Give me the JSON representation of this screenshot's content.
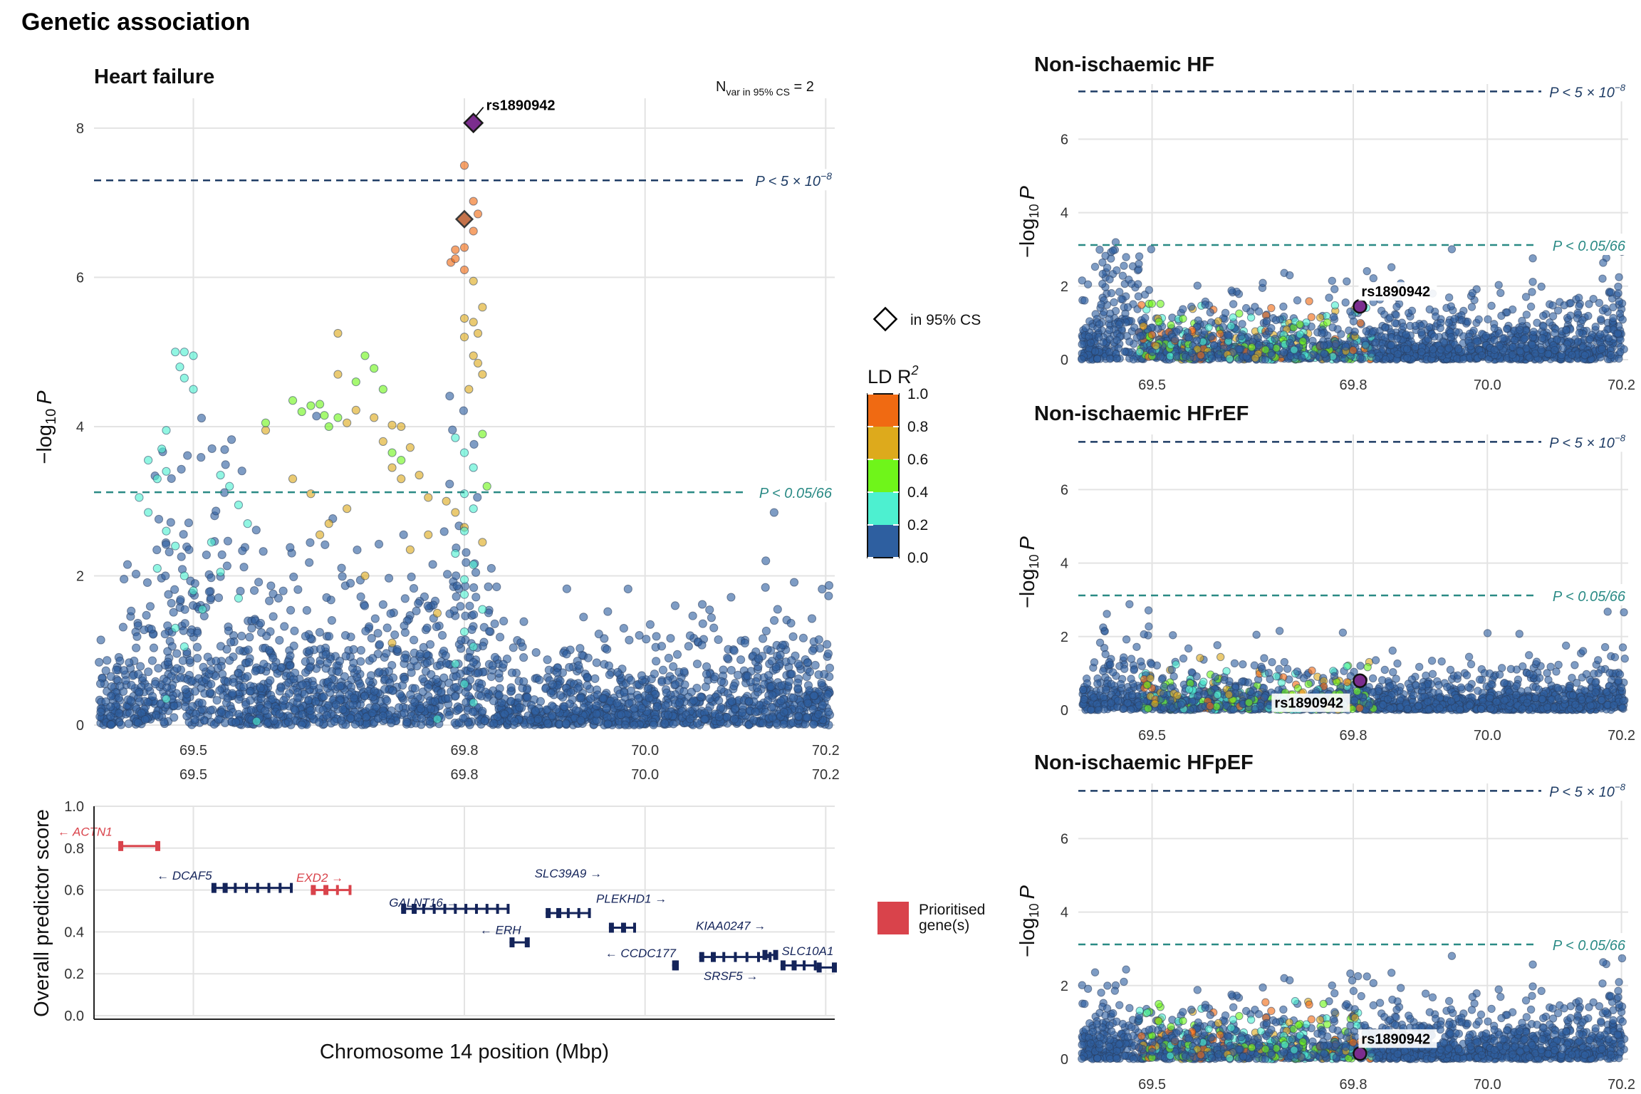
{
  "figure": {
    "title": "Genetic association",
    "main_panel_title": "Heart failure",
    "nvar_text": "N",
    "nvar_sub": "var in 95% CS",
    "nvar_value": " = 2",
    "lead_snp": "rs1890942",
    "xlabel": "Chromosome 14 position (Mbp)",
    "ylabel_logp": "−log",
    "ylabel_logp_sub": "10",
    "ylabel_logp_p": "P",
    "ylabel_gene": "Overall predictor score",
    "threshold_gw_label": "P < 5 × 10",
    "threshold_gw_exp": "−8",
    "threshold_bonf_label": "P < 0.05/66",
    "legend": {
      "cs_label": "in 95% CS",
      "ld_title": "LD R",
      "ld_title_exp": "2",
      "ld_ticks": [
        "1.0",
        "0.8",
        "0.6",
        "0.4",
        "0.2",
        "0.0"
      ],
      "prioritised_line1": "Prioritised",
      "prioritised_line2": "gene(s)"
    },
    "colors": {
      "ld_0": "#2E5FA0",
      "ld_2": "#4DF0D0",
      "ld_4": "#6FF51A",
      "ld_6": "#DDAA1C",
      "ld_8": "#F06A12",
      "lead": "#7B2D8E",
      "gw_line": "#1F3D66",
      "bonf_line": "#2A8A85",
      "prioritised": "#D9434B",
      "gene": "#14245A"
    }
  },
  "chart_data": [
    {
      "type": "scatter",
      "title": "Heart failure",
      "xlabel": "",
      "ylabel": "−log10 P",
      "xlim": [
        69.39,
        70.21
      ],
      "ylim": [
        0,
        8.4
      ],
      "x_ticks": [
        "69.5",
        "69.8",
        "70.0",
        "70.2"
      ],
      "y_ticks": [
        "0",
        "2",
        "4",
        "6",
        "8"
      ],
      "lead_snp": {
        "name": "rs1890942",
        "x": 69.81,
        "y": 8.07
      },
      "credible_set": [
        {
          "x": 69.81,
          "y": 8.07
        },
        {
          "x": 69.8,
          "y": 6.78
        }
      ],
      "thresholds": {
        "genome_wide": 7.3,
        "bonferroni": 3.12
      },
      "highlight_points": [
        [
          69.8,
          7.5,
          4
        ],
        [
          69.81,
          7.02,
          4
        ],
        [
          69.815,
          6.85,
          4
        ],
        [
          69.81,
          6.62,
          4
        ],
        [
          69.79,
          6.37,
          4
        ],
        [
          69.8,
          6.4,
          4
        ],
        [
          69.785,
          6.2,
          4
        ],
        [
          69.8,
          6.1,
          4
        ],
        [
          69.79,
          6.25,
          4
        ],
        [
          69.81,
          5.95,
          3
        ],
        [
          69.82,
          5.6,
          3
        ],
        [
          69.815,
          5.25,
          3
        ],
        [
          69.8,
          5.45,
          3
        ],
        [
          69.81,
          4.95,
          3
        ],
        [
          69.82,
          4.7,
          3
        ],
        [
          69.805,
          4.5,
          3
        ],
        [
          69.815,
          4.85,
          3
        ],
        [
          69.8,
          5.2,
          3
        ],
        [
          69.81,
          5.4,
          3
        ],
        [
          69.66,
          5.25,
          3
        ],
        [
          69.66,
          4.7,
          3
        ],
        [
          69.68,
          4.22,
          3
        ],
        [
          69.67,
          4.05,
          3
        ],
        [
          69.7,
          4.12,
          3
        ],
        [
          69.72,
          4.02,
          3
        ],
        [
          69.73,
          4.0,
          3
        ],
        [
          69.71,
          3.8,
          3
        ],
        [
          69.74,
          3.72,
          3
        ],
        [
          69.72,
          3.45,
          3
        ],
        [
          69.75,
          3.35,
          3
        ],
        [
          69.76,
          3.05,
          3
        ],
        [
          69.73,
          3.3,
          3
        ],
        [
          69.78,
          3.0,
          3
        ],
        [
          69.58,
          3.95,
          3
        ],
        [
          69.61,
          3.3,
          3
        ],
        [
          69.63,
          3.1,
          3
        ],
        [
          69.65,
          2.7,
          3
        ],
        [
          69.67,
          2.9,
          3
        ],
        [
          69.74,
          2.35,
          3
        ],
        [
          69.76,
          2.55,
          3
        ],
        [
          69.69,
          2.0,
          3
        ],
        [
          69.64,
          2.55,
          3
        ],
        [
          69.77,
          1.5,
          3
        ],
        [
          69.72,
          1.1,
          3
        ],
        [
          69.79,
          2.85,
          3
        ],
        [
          69.8,
          2.65,
          3
        ],
        [
          69.82,
          2.45,
          3
        ],
        [
          69.61,
          4.35,
          2
        ],
        [
          69.63,
          4.28,
          2
        ],
        [
          69.62,
          4.2,
          2
        ],
        [
          69.645,
          4.15,
          2
        ],
        [
          69.66,
          4.12,
          2
        ],
        [
          69.64,
          4.3,
          2
        ],
        [
          69.65,
          4.0,
          2
        ],
        [
          69.69,
          4.95,
          2
        ],
        [
          69.7,
          4.78,
          2
        ],
        [
          69.71,
          4.5,
          2
        ],
        [
          69.68,
          4.6,
          2
        ],
        [
          69.72,
          3.65,
          2
        ],
        [
          69.73,
          3.55,
          2
        ],
        [
          69.82,
          3.9,
          2
        ],
        [
          69.825,
          3.2,
          2
        ],
        [
          69.58,
          4.05,
          2
        ],
        [
          69.48,
          5.0,
          1
        ],
        [
          69.49,
          5.0,
          1
        ],
        [
          69.5,
          4.95,
          1
        ],
        [
          69.485,
          4.8,
          1
        ],
        [
          69.49,
          4.65,
          1
        ],
        [
          69.5,
          4.5,
          1
        ],
        [
          69.47,
          3.95,
          1
        ],
        [
          69.465,
          3.7,
          1
        ],
        [
          69.47,
          3.4,
          1
        ],
        [
          69.45,
          3.55,
          1
        ],
        [
          69.46,
          3.3,
          1
        ],
        [
          69.44,
          3.05,
          1
        ],
        [
          69.45,
          2.85,
          1
        ],
        [
          69.47,
          2.6,
          1
        ],
        [
          69.48,
          2.4,
          1
        ],
        [
          69.46,
          2.1,
          1
        ],
        [
          69.49,
          2.0,
          1
        ],
        [
          69.5,
          1.8,
          1
        ],
        [
          69.51,
          1.55,
          1
        ],
        [
          69.48,
          1.3,
          1
        ],
        [
          69.49,
          1.05,
          1
        ],
        [
          69.53,
          3.35,
          1
        ],
        [
          69.54,
          3.2,
          1
        ],
        [
          69.55,
          2.95,
          1
        ],
        [
          69.56,
          2.7,
          1
        ],
        [
          69.52,
          2.45,
          1
        ],
        [
          69.53,
          2.05,
          1
        ],
        [
          69.55,
          1.7,
          1
        ],
        [
          69.79,
          3.85,
          1
        ],
        [
          69.8,
          3.65,
          1
        ],
        [
          69.81,
          3.45,
          1
        ],
        [
          69.8,
          3.1,
          1
        ],
        [
          69.81,
          2.9,
          1
        ],
        [
          69.8,
          2.6,
          1
        ],
        [
          69.79,
          2.3,
          1
        ],
        [
          69.81,
          2.15,
          1
        ],
        [
          69.8,
          1.95,
          1
        ],
        [
          69.8,
          1.75,
          1
        ],
        [
          69.82,
          1.55,
          1
        ],
        [
          69.8,
          1.25,
          1
        ],
        [
          69.81,
          1.05,
          1
        ],
        [
          69.79,
          0.82,
          1
        ],
        [
          69.8,
          0.55,
          1
        ],
        [
          69.81,
          0.3,
          1
        ],
        [
          69.57,
          0.05,
          1
        ],
        [
          69.47,
          0.35,
          1
        ],
        [
          69.77,
          0.08,
          1
        ]
      ]
    },
    {
      "type": "bar",
      "title": "",
      "xlabel": "Chromosome 14 position (Mbp)",
      "ylabel": "Overall predictor score",
      "xlim": [
        69.39,
        70.21
      ],
      "ylim": [
        0,
        1.0
      ],
      "x_ticks": [
        "69.5",
        "69.8",
        "70.0",
        "70.2"
      ],
      "y_ticks": [
        "0.0",
        "0.2",
        "0.4",
        "0.6",
        "0.8",
        "1.0"
      ],
      "genes": [
        {
          "name": "ACTN1",
          "label": "← ACTN1",
          "start": 69.34,
          "end": 69.42,
          "score": 0.81,
          "prioritised": true,
          "label_x": 69.38,
          "label_y": 0.88
        },
        {
          "name": "DCAF5",
          "label": "← DCAF5",
          "start": 69.52,
          "end": 69.61,
          "score": 0.61,
          "prioritised": false,
          "label_x": 69.49,
          "label_y": 0.67
        },
        {
          "name": "EXD2",
          "label": "EXD2 →",
          "start": 69.63,
          "end": 69.675,
          "score": 0.6,
          "prioritised": true,
          "label_x": 69.64,
          "label_y": 0.66
        },
        {
          "name": "GALNT16",
          "label": "GALNT16 →",
          "start": 69.73,
          "end": 69.85,
          "score": 0.51,
          "prioritised": false,
          "label_x": 69.755,
          "label_y": 0.54
        },
        {
          "name": "SLC39A9",
          "label": "SLC39A9 →",
          "start": 69.89,
          "end": 69.94,
          "score": 0.49,
          "prioritised": false,
          "label_x": 69.915,
          "label_y": 0.68
        },
        {
          "name": "ERH",
          "label": "← ERH",
          "start": 69.85,
          "end": 69.87,
          "score": 0.35,
          "prioritised": false,
          "label_x": 69.84,
          "label_y": 0.41
        },
        {
          "name": "PLEKHD1",
          "label": "PLEKHD1 →",
          "start": 69.96,
          "end": 69.99,
          "score": 0.42,
          "prioritised": false,
          "label_x": 69.985,
          "label_y": 0.56
        },
        {
          "name": "CCDC177",
          "label": "← CCDC177",
          "start": 70.03,
          "end": 70.035,
          "score": 0.24,
          "prioritised": false,
          "label_x": 69.995,
          "label_y": 0.3
        },
        {
          "name": "KIAA0247",
          "label": "KIAA0247 →",
          "start": 70.06,
          "end": 70.14,
          "score": 0.28,
          "prioritised": false,
          "label_x": 70.095,
          "label_y": 0.43
        },
        {
          "name": "SRSF5",
          "label": "SRSF5 →",
          "start": 70.13,
          "end": 70.145,
          "score": 0.29,
          "prioritised": false,
          "label_x": 70.095,
          "label_y": 0.19
        },
        {
          "name": "SLC10A1",
          "label": "SLC10A1",
          "start": 70.15,
          "end": 70.19,
          "score": 0.24,
          "prioritised": false,
          "label_x": 70.18,
          "label_y": 0.31
        },
        {
          "name": "SRSF5b",
          "label": "",
          "start": 70.19,
          "end": 70.21,
          "score": 0.23,
          "prioritised": false,
          "label_x": 0,
          "label_y": 0
        }
      ]
    },
    {
      "type": "scatter",
      "title": "Non-ischaemic HF",
      "xlim": [
        69.39,
        70.21
      ],
      "ylim": [
        0,
        7.5
      ],
      "x_ticks": [
        "69.5",
        "69.8",
        "70.0",
        "70.2"
      ],
      "y_ticks": [
        "0",
        "2",
        "4",
        "6"
      ],
      "lead_snp": {
        "name": "rs1890942",
        "x": 69.81,
        "y": 1.45
      },
      "thresholds": {
        "genome_wide": 7.3,
        "bonferroni": 3.12
      }
    },
    {
      "type": "scatter",
      "title": "Non-ischaemic HFrEF",
      "xlim": [
        69.39,
        70.21
      ],
      "ylim": [
        0,
        7.5
      ],
      "x_ticks": [
        "69.5",
        "69.8",
        "70.0",
        "70.2"
      ],
      "y_ticks": [
        "0",
        "2",
        "4",
        "6"
      ],
      "lead_snp": {
        "name": "rs1890942",
        "x": 69.81,
        "y": 0.8
      },
      "thresholds": {
        "genome_wide": 7.3,
        "bonferroni": 3.12
      }
    },
    {
      "type": "scatter",
      "title": "Non-ischaemic HFpEF",
      "xlim": [
        69.39,
        70.21
      ],
      "ylim": [
        0,
        7.5
      ],
      "x_ticks": [
        "69.5",
        "69.8",
        "70.0",
        "70.2"
      ],
      "y_ticks": [
        "0",
        "2",
        "4",
        "6"
      ],
      "lead_snp": {
        "name": "rs1890942",
        "x": 69.81,
        "y": 0.15
      },
      "thresholds": {
        "genome_wide": 7.3,
        "bonferroni": 3.12
      }
    }
  ]
}
